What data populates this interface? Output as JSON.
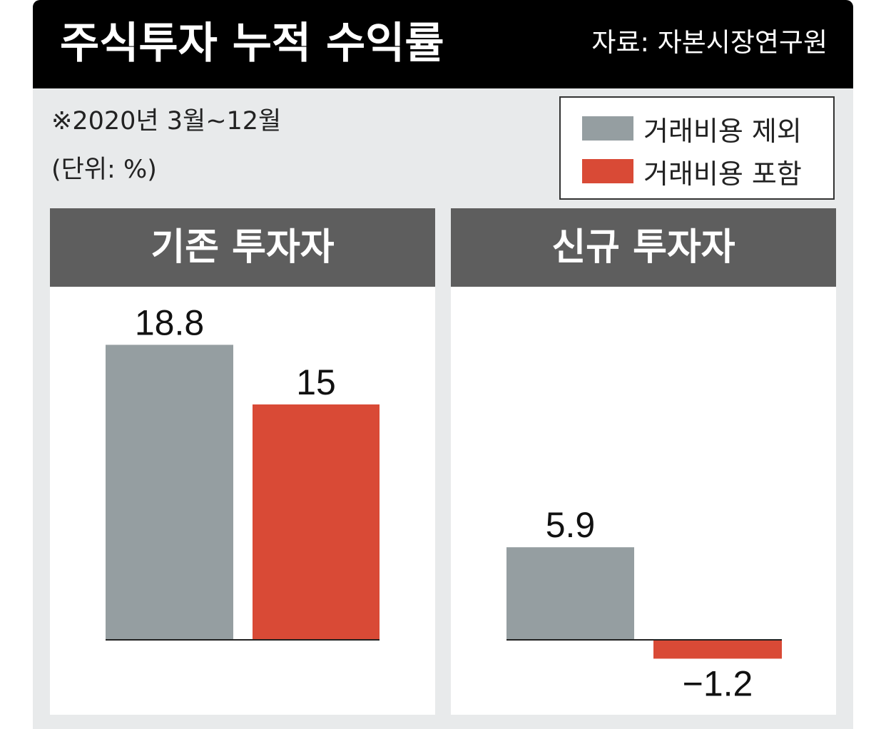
{
  "header": {
    "title": "주식투자 누적 수익률",
    "source": "자료: 자본시장연구원"
  },
  "notes": {
    "period": "※2020년 3월~12월",
    "unit": "(단위: %)"
  },
  "legend": [
    {
      "label": "거래비용 제외",
      "color": "#959ea1"
    },
    {
      "label": "거래비용 포함",
      "color": "#d94a36"
    }
  ],
  "panel_colors": {
    "header_bg": "#5e5e5e",
    "background": "#ffffff"
  },
  "chart_data": [
    {
      "type": "bar",
      "title": "기존 투자자",
      "categories": [
        "거래비용 제외",
        "거래비용 포함"
      ],
      "values": [
        18.8,
        15
      ],
      "labels": [
        "18.8",
        "15"
      ],
      "colors": [
        "#959ea1",
        "#d94a36"
      ],
      "xlabel": "",
      "ylabel": "",
      "grid": false
    },
    {
      "type": "bar",
      "title": "신규 투자자",
      "categories": [
        "거래비용 제외",
        "거래비용 포함"
      ],
      "values": [
        5.9,
        -1.2
      ],
      "labels": [
        "5.9",
        "−1.2"
      ],
      "colors": [
        "#959ea1",
        "#d94a36"
      ],
      "xlabel": "",
      "ylabel": "",
      "grid": false
    }
  ]
}
